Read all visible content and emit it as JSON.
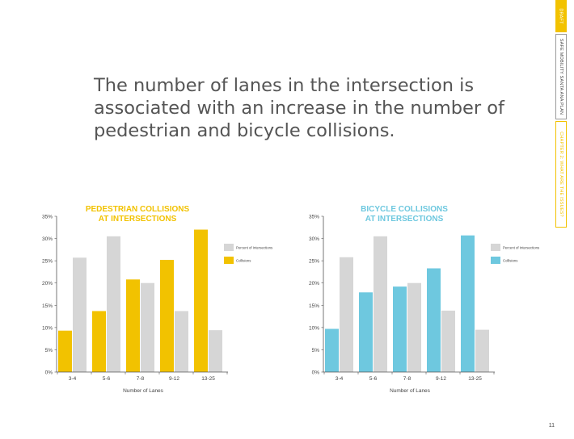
{
  "side_tabs": {
    "draft": "DRAFT",
    "plan": "SAFE MOBILITY SANTA ANA PLAN",
    "chapter": "CHAPTER 2: WHAT ARE THE ISSUES?"
  },
  "headline": "The number of lanes in the intersection is associated with an increase in the number of pedestrian and bicycle collisions.",
  "page_number": "11",
  "colors": {
    "pedestrian_accent": "#f2c200",
    "bicycle_accent": "#6ec8df",
    "intersections_gray": "#d6d6d6",
    "axis": "#555555"
  },
  "chart_data": [
    {
      "type": "bar",
      "title_lines": [
        "PEDESTRIAN COLLISIONS",
        "AT INTERSECTIONS"
      ],
      "categories": [
        "3-4",
        "5-6",
        "7-8",
        "9-12",
        "13-25"
      ],
      "xlabel": "Number of Lanes",
      "ylabel": "",
      "ylim": [
        0,
        35
      ],
      "yticks": [
        0,
        5,
        10,
        15,
        20,
        25,
        30,
        35
      ],
      "ytick_labels": [
        "0%",
        "5%",
        "10%",
        "15%",
        "20%",
        "25%",
        "30%",
        "35%"
      ],
      "legend_position": "right",
      "series": [
        {
          "name": "Collisions",
          "color": "#f2c200",
          "values": [
            9.3,
            13.7,
            20.8,
            25.2,
            32.0
          ]
        },
        {
          "name": "Percent of Intersections",
          "color": "#d6d6d6",
          "values": [
            25.7,
            30.5,
            20.0,
            13.7,
            9.4
          ]
        }
      ]
    },
    {
      "type": "bar",
      "title_lines": [
        "BICYCLE COLLISIONS",
        "AT INTERSECTIONS"
      ],
      "categories": [
        "3-4",
        "5-6",
        "7-8",
        "9-12",
        "13-25"
      ],
      "xlabel": "Number of Lanes",
      "ylabel": "",
      "ylim": [
        0,
        35
      ],
      "yticks": [
        0,
        5,
        10,
        15,
        20,
        25,
        30,
        35
      ],
      "ytick_labels": [
        "0%",
        "5%",
        "10%",
        "15%",
        "20%",
        "25%",
        "30%",
        "35%"
      ],
      "legend_position": "right",
      "series": [
        {
          "name": "Collisions",
          "color": "#6ec8df",
          "values": [
            9.7,
            17.9,
            19.2,
            23.3,
            30.7
          ]
        },
        {
          "name": "Percent of Intersections",
          "color": "#d6d6d6",
          "values": [
            25.8,
            30.5,
            20.0,
            13.8,
            9.5
          ]
        }
      ]
    }
  ]
}
